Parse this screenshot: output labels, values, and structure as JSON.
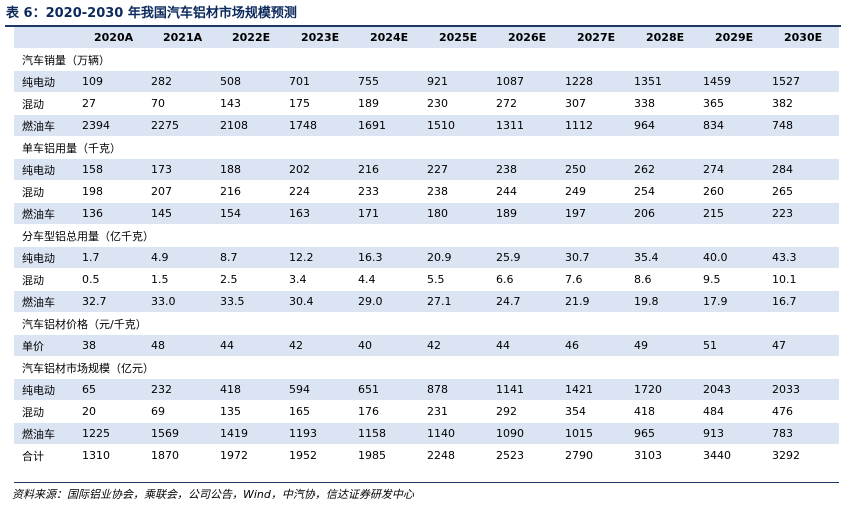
{
  "title": "表 6：2020-2030 年我国汽车铝材市场规模预测",
  "header": [
    "",
    "2020A",
    "2021A",
    "2022E",
    "2023E",
    "2024E",
    "2025E",
    "2026E",
    "2027E",
    "2028E",
    "2029E",
    "2030E"
  ],
  "rows": [
    {
      "type": "sec",
      "label": "汽车销量（万辆）"
    },
    {
      "type": "shade",
      "label": "纯电动",
      "values": [
        "109",
        "282",
        "508",
        "701",
        "755",
        "921",
        "1087",
        "1228",
        "1351",
        "1459",
        "1527"
      ]
    },
    {
      "type": "plain",
      "label": "混动",
      "values": [
        "27",
        "70",
        "143",
        "175",
        "189",
        "230",
        "272",
        "307",
        "338",
        "365",
        "382"
      ]
    },
    {
      "type": "shade",
      "label": "燃油车",
      "values": [
        "2394",
        "2275",
        "2108",
        "1748",
        "1691",
        "1510",
        "1311",
        "1112",
        "964",
        "834",
        "748"
      ]
    },
    {
      "type": "sec",
      "label": "单车铝用量（千克）"
    },
    {
      "type": "shade",
      "label": "纯电动",
      "values": [
        "158",
        "173",
        "188",
        "202",
        "216",
        "227",
        "238",
        "250",
        "262",
        "274",
        "284"
      ]
    },
    {
      "type": "plain",
      "label": "混动",
      "values": [
        "198",
        "207",
        "216",
        "224",
        "233",
        "238",
        "244",
        "249",
        "254",
        "260",
        "265"
      ]
    },
    {
      "type": "shade",
      "label": "燃油车",
      "values": [
        "136",
        "145",
        "154",
        "163",
        "171",
        "180",
        "189",
        "197",
        "206",
        "215",
        "223"
      ]
    },
    {
      "type": "sec",
      "label": "分车型铝总用量（亿千克）"
    },
    {
      "type": "shade",
      "label": "纯电动",
      "values": [
        "1.7",
        "4.9",
        "8.7",
        "12.2",
        "16.3",
        "20.9",
        "25.9",
        "30.7",
        "35.4",
        "40.0",
        "43.3"
      ]
    },
    {
      "type": "plain",
      "label": "混动",
      "values": [
        "0.5",
        "1.5",
        "2.5",
        "3.4",
        "4.4",
        "5.5",
        "6.6",
        "7.6",
        "8.6",
        "9.5",
        "10.1"
      ]
    },
    {
      "type": "shade",
      "label": "燃油车",
      "values": [
        "32.7",
        "33.0",
        "33.5",
        "30.4",
        "29.0",
        "27.1",
        "24.7",
        "21.9",
        "19.8",
        "17.9",
        "16.7"
      ]
    },
    {
      "type": "sec",
      "label": "汽车铝材价格（元/千克）"
    },
    {
      "type": "shade",
      "label": "单价",
      "values": [
        "38",
        "48",
        "44",
        "42",
        "40",
        "42",
        "44",
        "46",
        "49",
        "51",
        "47"
      ]
    },
    {
      "type": "sec",
      "label": "汽车铝材市场规模（亿元）"
    },
    {
      "type": "shade",
      "label": "纯电动",
      "values": [
        "65",
        "232",
        "418",
        "594",
        "651",
        "878",
        "1141",
        "1421",
        "1720",
        "2043",
        "2033"
      ]
    },
    {
      "type": "plain",
      "label": "混动",
      "values": [
        "20",
        "69",
        "135",
        "165",
        "176",
        "231",
        "292",
        "354",
        "418",
        "484",
        "476"
      ]
    },
    {
      "type": "shade",
      "label": "燃油车",
      "values": [
        "1225",
        "1569",
        "1419",
        "1193",
        "1158",
        "1140",
        "1090",
        "1015",
        "965",
        "913",
        "783"
      ]
    },
    {
      "type": "plain",
      "label": "合计",
      "values": [
        "1310",
        "1870",
        "1972",
        "1952",
        "1985",
        "2248",
        "2523",
        "2790",
        "3103",
        "3440",
        "3292"
      ]
    }
  ],
  "source": "资料来源：国际铝业协会，乘联会，公司公告，Wind，中汽协，信达证券研发中心"
}
